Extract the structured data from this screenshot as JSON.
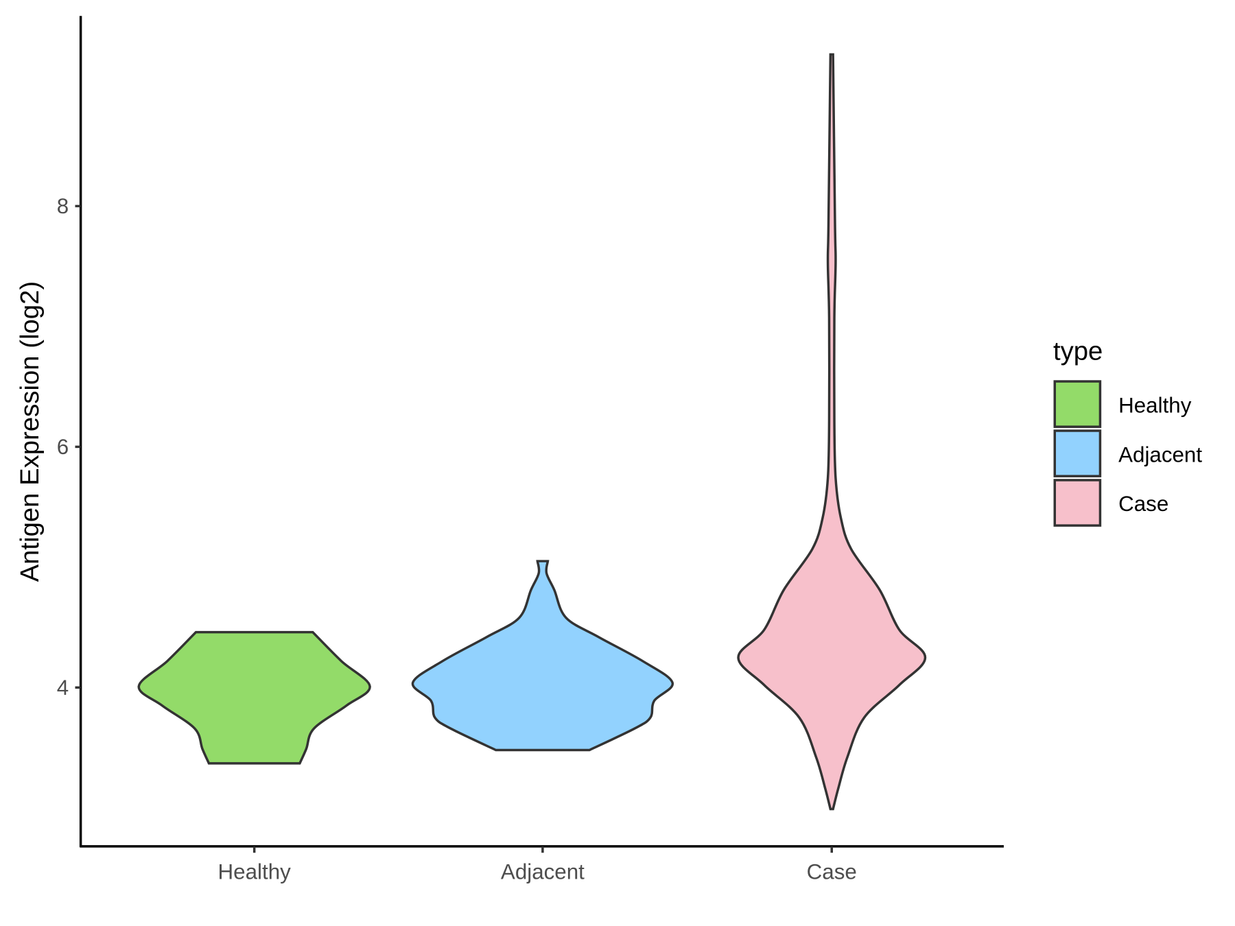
{
  "chart_data": {
    "type": "violin",
    "title": "",
    "xlabel": "",
    "ylabel": "Antigen Expression (log2)",
    "categories": [
      "Healthy",
      "Adjacent",
      "Case"
    ],
    "yticks": [
      "4",
      "6",
      "8"
    ],
    "ytick_values": [
      4,
      6,
      8
    ],
    "ylim": [
      2.68,
      9.58
    ],
    "grid": false,
    "legend": {
      "title": "type",
      "position": "right",
      "entries": [
        "Healthy",
        "Adjacent",
        "Case"
      ]
    },
    "colors": {
      "Healthy": "#93DB69",
      "Adjacent": "#92D2FE",
      "Case": "#F7C0CB",
      "outline": "#333333"
    },
    "series": [
      {
        "name": "Healthy",
        "min": 3.37,
        "max": 4.46,
        "profile": [
          [
            4.46,
            0.45
          ],
          [
            4.22,
            0.67
          ],
          [
            4.01,
            0.89
          ],
          [
            3.85,
            0.71
          ],
          [
            3.66,
            0.46
          ],
          [
            3.49,
            0.4
          ],
          [
            3.37,
            0.35
          ]
        ]
      },
      {
        "name": "Adjacent",
        "min": 3.48,
        "max": 5.05,
        "profile": [
          [
            5.05,
            0.04
          ],
          [
            4.95,
            0.03
          ],
          [
            4.81,
            0.09
          ],
          [
            4.58,
            0.18
          ],
          [
            4.42,
            0.43
          ],
          [
            4.22,
            0.77
          ],
          [
            4.04,
            1.0
          ],
          [
            3.89,
            0.86
          ],
          [
            3.75,
            0.83
          ],
          [
            3.66,
            0.71
          ],
          [
            3.48,
            0.36
          ]
        ]
      },
      {
        "name": "Case",
        "min": 2.99,
        "max": 9.26,
        "profile": [
          [
            9.26,
            0.01
          ],
          [
            7.86,
            0.025
          ],
          [
            7.53,
            0.03
          ],
          [
            7.07,
            0.02
          ],
          [
            6.21,
            0.02
          ],
          [
            5.74,
            0.03
          ],
          [
            5.41,
            0.07
          ],
          [
            5.15,
            0.15
          ],
          [
            4.81,
            0.37
          ],
          [
            4.48,
            0.52
          ],
          [
            4.25,
            0.72
          ],
          [
            4.02,
            0.52
          ],
          [
            3.75,
            0.25
          ],
          [
            3.42,
            0.12
          ],
          [
            3.16,
            0.05
          ],
          [
            2.99,
            0.01
          ]
        ]
      }
    ]
  }
}
